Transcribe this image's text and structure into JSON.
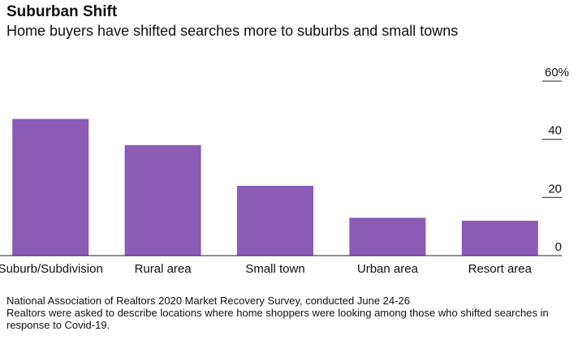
{
  "title": "Suburban Shift",
  "subtitle": "Home buyers have shifted searches more to suburbs and small towns",
  "chart_data": {
    "type": "bar",
    "categories": [
      "Suburb/Subdivision",
      "Rural area",
      "Small town",
      "Urban area",
      "Resort area"
    ],
    "values": [
      47,
      38,
      24,
      13,
      12
    ],
    "ylim": [
      0,
      60
    ],
    "yticks": [
      0,
      20,
      40,
      60
    ],
    "ytick_labels": [
      "0",
      "20",
      "40",
      "60%"
    ],
    "axis_side": "right",
    "bar_color": "#8b5bb5",
    "grid": false
  },
  "notes": {
    "line1": "National Association of Realtors 2020 Market Recovery Survey, conducted June 24-26",
    "line2": "Realtors were asked to describe locations where home shoppers were looking among those who shifted searches in response to Covid-19."
  }
}
